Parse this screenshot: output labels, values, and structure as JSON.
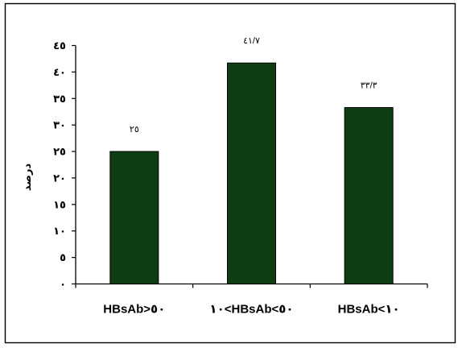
{
  "chart_data": {
    "type": "bar",
    "categories": [
      "HBsAb>٥٠",
      "١٠<HBsAb<٥٠",
      "HBsAb<١٠"
    ],
    "values": [
      25,
      41.7,
      33.3
    ],
    "data_labels": [
      "٢٥",
      "٤١/٧",
      "٣٣/٣"
    ],
    "ylabel": "درصد",
    "xlabel": "",
    "title": "",
    "ylim": [
      0,
      45
    ],
    "y_ticks": [
      0,
      5,
      10,
      15,
      20,
      25,
      30,
      35,
      40,
      45
    ],
    "y_tick_labels": [
      "٠",
      "٥",
      "١٠",
      "١٥",
      "٢٠",
      "٢٥",
      "٣٠",
      "٣٥",
      "٤٠",
      "٤٥"
    ],
    "grid": false,
    "legend": "none"
  },
  "colors": {
    "bar": "#0f3d12",
    "axis": "#000000",
    "frame": "#000000",
    "background": "#ffffff"
  }
}
